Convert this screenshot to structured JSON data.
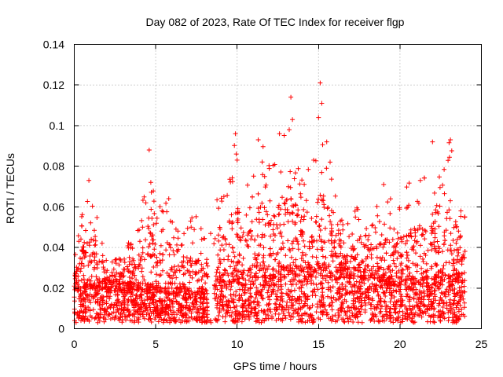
{
  "chart_data": {
    "type": "scatter",
    "title": "Day 082 of 2023, Rate Of TEC Index for receiver flgp",
    "xlabel": "GPS time / hours",
    "ylabel": "ROTI / TECUs",
    "xlim": [
      0,
      25
    ],
    "ylim": [
      0,
      0.14
    ],
    "xticks": [
      0,
      5,
      10,
      15,
      20,
      25
    ],
    "xtick_labels": [
      "0",
      "5",
      "10",
      "15",
      "20",
      "25"
    ],
    "yticks": [
      0,
      0.02,
      0.04,
      0.06,
      0.08,
      0.1,
      0.12,
      0.14
    ],
    "ytick_labels": [
      "0",
      "0.02",
      "0.04",
      "0.06",
      "0.08",
      "0.1",
      "0.12",
      "0.14"
    ],
    "grid": true,
    "marker": "plus",
    "series_color": "#ff0000",
    "data_range_x": [
      0,
      24
    ],
    "gap_x": [
      8.2,
      8.6
    ],
    "outliers": [
      {
        "x": 13.3,
        "y": 0.114
      },
      {
        "x": 15.1,
        "y": 0.121
      },
      {
        "x": 15.2,
        "y": 0.111
      },
      {
        "x": 13.4,
        "y": 0.103
      },
      {
        "x": 15.0,
        "y": 0.104
      },
      {
        "x": 9.9,
        "y": 0.096
      },
      {
        "x": 4.6,
        "y": 0.088
      },
      {
        "x": 23.1,
        "y": 0.093
      },
      {
        "x": 22.0,
        "y": 0.092
      },
      {
        "x": 11.3,
        "y": 0.093
      },
      {
        "x": 12.6,
        "y": 0.096
      },
      {
        "x": 15.5,
        "y": 0.092
      },
      {
        "x": 14.7,
        "y": 0.083
      },
      {
        "x": 19.0,
        "y": 0.071
      },
      {
        "x": 0.9,
        "y": 0.073
      },
      {
        "x": 4.7,
        "y": 0.072
      },
      {
        "x": 5.8,
        "y": 0.064
      },
      {
        "x": 10.0,
        "y": 0.083
      },
      {
        "x": 13.2,
        "y": 0.098
      }
    ],
    "envelope": [
      {
        "x": 0.0,
        "y": 0.035
      },
      {
        "x": 0.3,
        "y": 0.049
      },
      {
        "x": 0.9,
        "y": 0.073
      },
      {
        "x": 1.5,
        "y": 0.052
      },
      {
        "x": 2.0,
        "y": 0.035
      },
      {
        "x": 2.8,
        "y": 0.035
      },
      {
        "x": 3.5,
        "y": 0.045
      },
      {
        "x": 4.0,
        "y": 0.053
      },
      {
        "x": 4.6,
        "y": 0.088
      },
      {
        "x": 5.0,
        "y": 0.062
      },
      {
        "x": 5.8,
        "y": 0.064
      },
      {
        "x": 6.5,
        "y": 0.045
      },
      {
        "x": 7.4,
        "y": 0.058
      },
      {
        "x": 8.0,
        "y": 0.045
      },
      {
        "x": 8.6,
        "y": 0.067
      },
      {
        "x": 9.2,
        "y": 0.068
      },
      {
        "x": 9.9,
        "y": 0.096
      },
      {
        "x": 10.5,
        "y": 0.066
      },
      {
        "x": 11.3,
        "y": 0.093
      },
      {
        "x": 12.0,
        "y": 0.085
      },
      {
        "x": 12.6,
        "y": 0.096
      },
      {
        "x": 13.3,
        "y": 0.103
      },
      {
        "x": 14.0,
        "y": 0.085
      },
      {
        "x": 14.7,
        "y": 0.083
      },
      {
        "x": 15.1,
        "y": 0.11
      },
      {
        "x": 15.5,
        "y": 0.092
      },
      {
        "x": 16.2,
        "y": 0.062
      },
      {
        "x": 17.0,
        "y": 0.055
      },
      {
        "x": 17.8,
        "y": 0.066
      },
      {
        "x": 18.5,
        "y": 0.06
      },
      {
        "x": 19.0,
        "y": 0.07
      },
      {
        "x": 20.0,
        "y": 0.065
      },
      {
        "x": 20.8,
        "y": 0.075
      },
      {
        "x": 21.5,
        "y": 0.08
      },
      {
        "x": 22.0,
        "y": 0.092
      },
      {
        "x": 22.6,
        "y": 0.086
      },
      {
        "x": 23.1,
        "y": 0.093
      },
      {
        "x": 23.6,
        "y": 0.07
      },
      {
        "x": 24.0,
        "y": 0.058
      }
    ],
    "baseline": [
      {
        "x": 0.0,
        "y": 0.02
      },
      {
        "x": 4.0,
        "y": 0.018
      },
      {
        "x": 8.0,
        "y": 0.015
      },
      {
        "x": 9.0,
        "y": 0.022
      },
      {
        "x": 13.0,
        "y": 0.025
      },
      {
        "x": 16.0,
        "y": 0.025
      },
      {
        "x": 20.0,
        "y": 0.02
      },
      {
        "x": 24.0,
        "y": 0.022
      }
    ]
  }
}
